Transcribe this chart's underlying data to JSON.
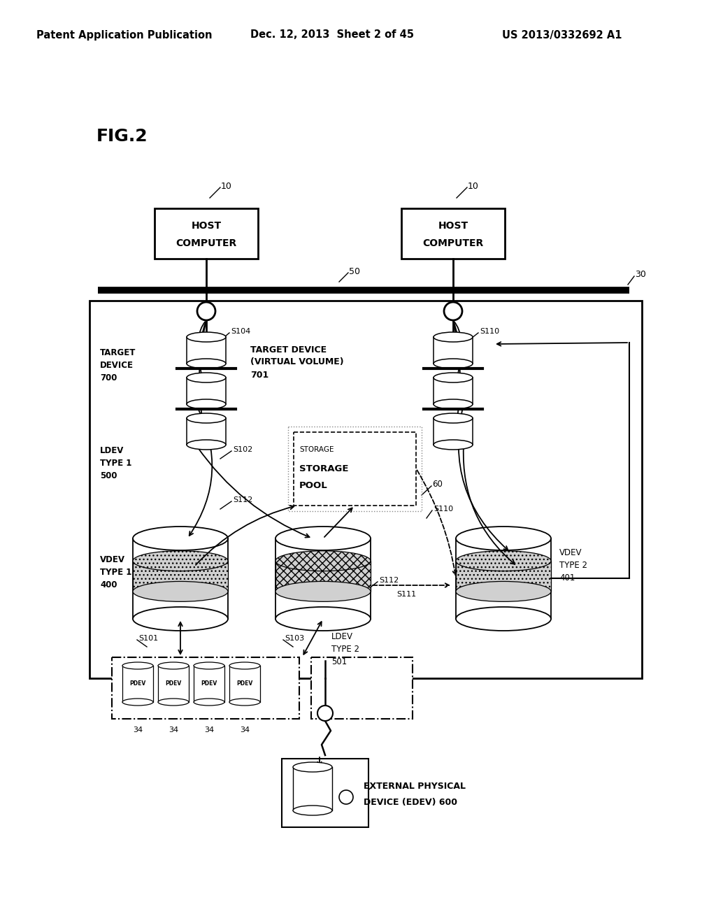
{
  "bg_color": "#ffffff",
  "header_left": "Patent Application Publication",
  "header_mid": "Dec. 12, 2013  Sheet 2 of 45",
  "header_right": "US 2013/0332692 A1",
  "fig_label": "FIG.2"
}
